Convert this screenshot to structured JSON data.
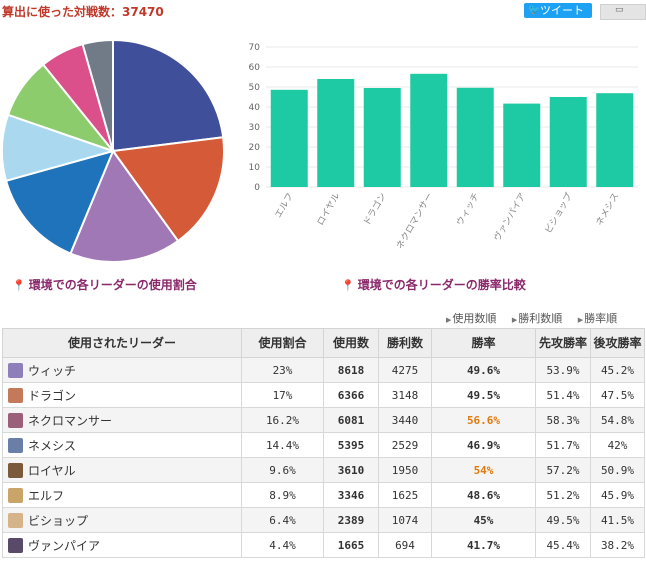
{
  "header": {
    "title": "算出に使った対戦数：37470",
    "tweet_label": "ツイート"
  },
  "captions": {
    "pie": "環境での各リーダーの使用割合",
    "bar": "環境での各リーダーの勝率比較"
  },
  "sort_options": [
    "使用数順",
    "勝利数順",
    "勝率順"
  ],
  "chart_data": [
    {
      "type": "pie",
      "slices": [
        {
          "value": 23,
          "color": "#3f4f9a"
        },
        {
          "value": 17,
          "color": "#d55a38"
        },
        {
          "value": 16.2,
          "color": "#a178b6"
        },
        {
          "value": 14.4,
          "color": "#1f73bb"
        },
        {
          "value": 9.6,
          "color": "#a9d8ef"
        },
        {
          "value": 8.9,
          "color": "#8ccc6c"
        },
        {
          "value": 6.4,
          "color": "#db4f8a"
        },
        {
          "value": 4.4,
          "color": "#717b88"
        }
      ]
    },
    {
      "type": "bar",
      "categories": [
        "エルフ",
        "ロイヤル",
        "ドラゴン",
        "ネクロマンサー",
        "ウィッチ",
        "ヴァンパイア",
        "ビショップ",
        "ネメシス"
      ],
      "values": [
        48.6,
        54,
        49.5,
        56.6,
        49.6,
        41.7,
        45,
        46.9
      ],
      "ylim": [
        0,
        70
      ],
      "yticks": [
        "0",
        "10",
        "20",
        "30",
        "40",
        "50",
        "60",
        "70"
      ],
      "color": "#1dcaa3",
      "grid": true
    }
  ],
  "table": {
    "headers": [
      "使用されたリーダー",
      "使用割合",
      "使用数",
      "勝利数",
      "勝率",
      "先攻勝率",
      "後攻勝率"
    ],
    "rows": [
      {
        "name": "ウィッチ",
        "share": "23%",
        "count": "8618",
        "wins": "4275",
        "winrate": "49.6%",
        "first": "53.9%",
        "second": "45.2%",
        "icon": "#8f7fb8",
        "hi": false
      },
      {
        "name": "ドラゴン",
        "share": "17%",
        "count": "6366",
        "wins": "3148",
        "winrate": "49.5%",
        "first": "51.4%",
        "second": "47.5%",
        "icon": "#c47a5a",
        "hi": false
      },
      {
        "name": "ネクロマンサー",
        "share": "16.2%",
        "count": "6081",
        "wins": "3440",
        "winrate": "56.6%",
        "first": "58.3%",
        "second": "54.8%",
        "icon": "#9a5f7a",
        "hi": true
      },
      {
        "name": "ネメシス",
        "share": "14.4%",
        "count": "5395",
        "wins": "2529",
        "winrate": "46.9%",
        "first": "51.7%",
        "second": "42%",
        "icon": "#6a7fa8",
        "hi": false
      },
      {
        "name": "ロイヤル",
        "share": "9.6%",
        "count": "3610",
        "wins": "1950",
        "winrate": "54%",
        "first": "57.2%",
        "second": "50.9%",
        "icon": "#7a5a3a",
        "hi": true
      },
      {
        "name": "エルフ",
        "share": "8.9%",
        "count": "3346",
        "wins": "1625",
        "winrate": "48.6%",
        "first": "51.2%",
        "second": "45.9%",
        "icon": "#c9a56a",
        "hi": false
      },
      {
        "name": "ビショップ",
        "share": "6.4%",
        "count": "2389",
        "wins": "1074",
        "winrate": "45%",
        "first": "49.5%",
        "second": "41.5%",
        "icon": "#d6b48a",
        "hi": false
      },
      {
        "name": "ヴァンパイア",
        "share": "4.4%",
        "count": "1665",
        "wins": "694",
        "winrate": "41.7%",
        "first": "45.4%",
        "second": "38.2%",
        "icon": "#5a4a6a",
        "hi": false
      }
    ]
  }
}
